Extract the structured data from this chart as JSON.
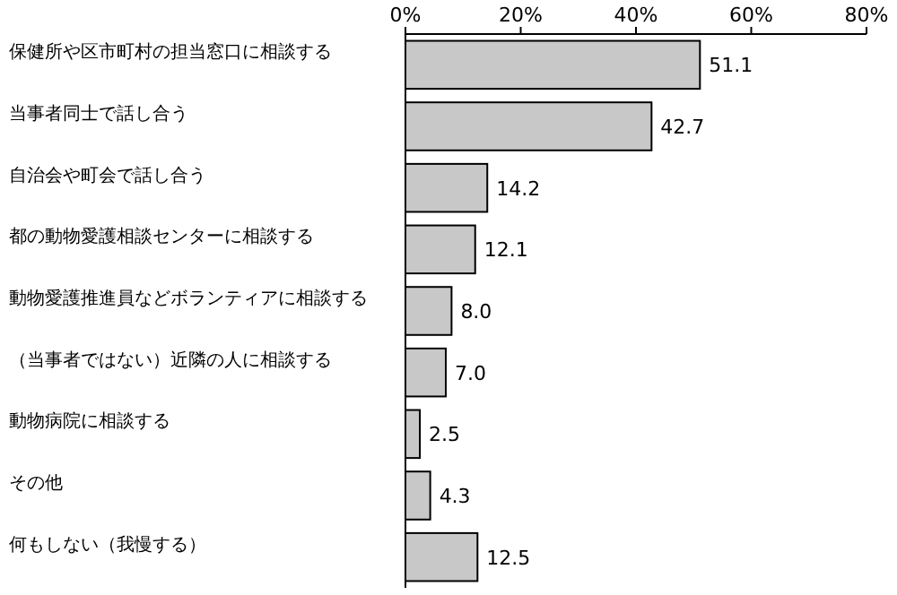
{
  "chart_data": {
    "type": "bar",
    "orientation": "horizontal",
    "categories": [
      "保健所や区市町村の担当窓口に相談する",
      "当事者同士で話し合う",
      "自治会や町会で話し合う",
      "都の動物愛護相談センターに相談する",
      "動物愛護推進員などボランティアに相談する",
      "（当事者ではない）近隣の人に相談する",
      "動物病院に相談する",
      "その他",
      "何もしない（我慢する）"
    ],
    "values": [
      51.1,
      42.7,
      14.2,
      12.1,
      8.0,
      7.0,
      2.5,
      4.3,
      12.5
    ],
    "value_labels": [
      "51.1",
      "42.7",
      "14.2",
      "12.1",
      "8.0",
      "7.0",
      "2.5",
      "4.3",
      "12.5"
    ],
    "color": "#c8c8c8",
    "xlim": [
      0,
      80
    ],
    "xticks": [
      {
        "value": 0,
        "label": "0%"
      },
      {
        "value": 20,
        "label": "20%"
      },
      {
        "value": 40,
        "label": "40%"
      },
      {
        "value": 60,
        "label": "60%"
      },
      {
        "value": 80,
        "label": "80%"
      }
    ]
  }
}
